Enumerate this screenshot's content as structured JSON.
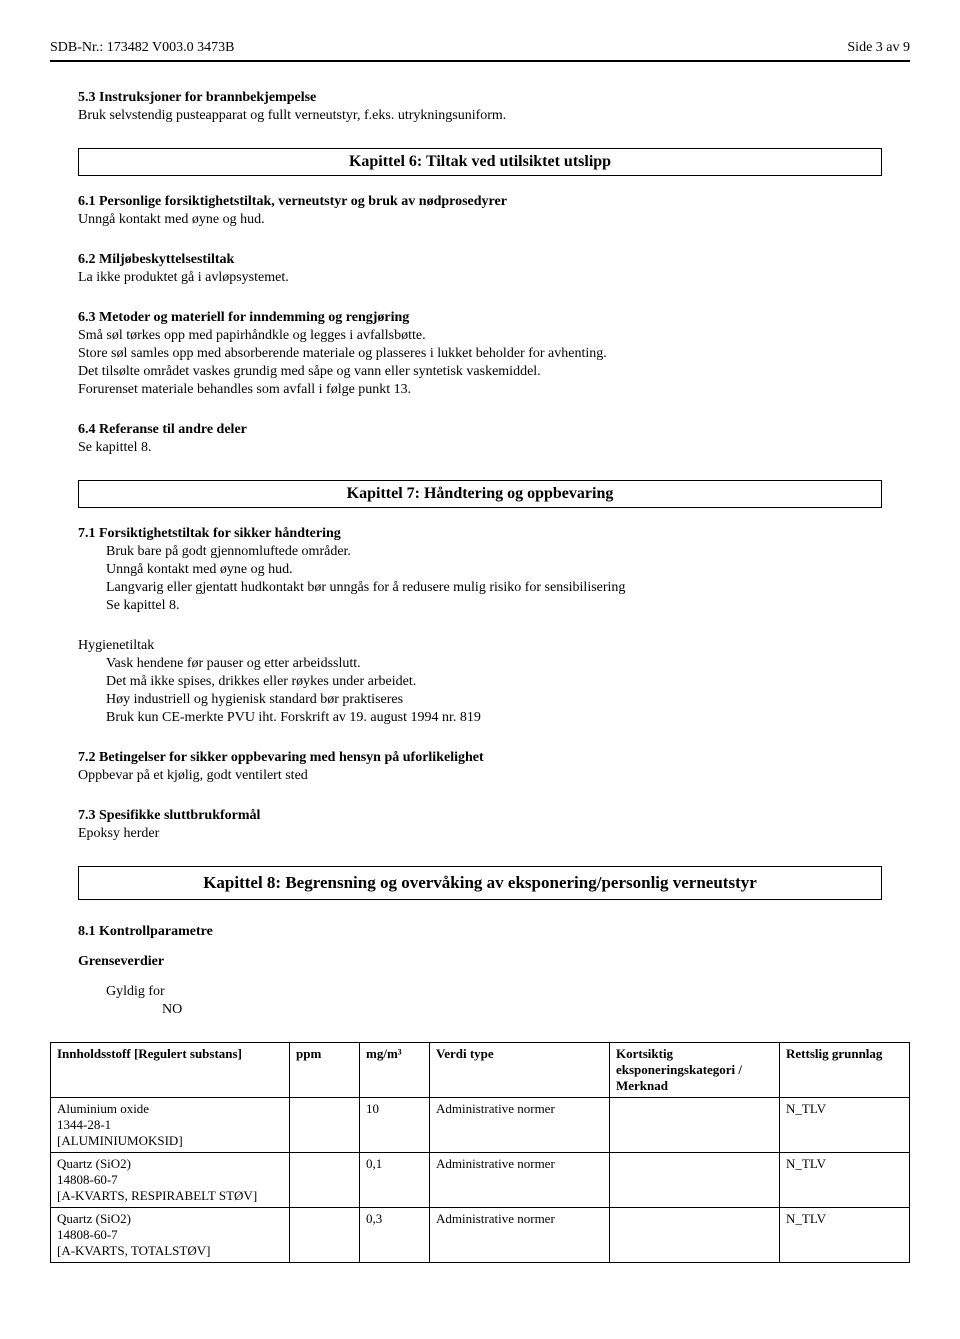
{
  "header": {
    "left": "SDB-Nr.:  173482  V003.0   3473B",
    "right": "Side 3 av 9"
  },
  "s53": {
    "title": "5.3 Instruksjoner for brannbekjempelse",
    "body": "Bruk selvstendig pusteapparat og fullt verneutstyr, f.eks. utrykningsuniform."
  },
  "ch6": {
    "title": "Kapittel 6: Tiltak ved utilsiktet utslipp",
    "s61_title": "6.1 Personlige forsiktighetstiltak, verneutstyr og bruk av nødprosedyrer",
    "s61_body": "Unngå kontakt med øyne og hud.",
    "s62_title": "6.2 Miljøbeskyttelsestiltak",
    "s62_body": "La ikke produktet gå i avløpsystemet.",
    "s63_title": "6.3 Metoder og materiell for inndemming og rengjøring",
    "s63_l1": "Små søl tørkes opp med papirhåndkle og legges i avfallsbøtte.",
    "s63_l2": "Store søl samles opp med absorberende materiale og plasseres i lukket beholder for avhenting.",
    "s63_l3": "Det tilsølte området vaskes grundig med såpe og vann eller syntetisk vaskemiddel.",
    "s63_l4": "Forurenset materiale behandles som avfall i følge punkt 13.",
    "s64_title": "6.4 Referanse til andre deler",
    "s64_body": "Se kapittel 8."
  },
  "ch7": {
    "title": "Kapittel 7: Håndtering og oppbevaring",
    "s71_title": "7.1 Forsiktighetstiltak for sikker håndtering",
    "s71_l1": "Bruk bare på godt gjennomluftede områder.",
    "s71_l2": "Unngå kontakt med øyne og hud.",
    "s71_l3": "Langvarig eller gjentatt hudkontakt bør unngås for å redusere mulig risiko for sensibilisering",
    "s71_l4": "Se kapittel 8.",
    "hyg_title": "Hygienetiltak",
    "hyg_l1": "Vask hendene før pauser og etter arbeidsslutt.",
    "hyg_l2": "Det må ikke spises, drikkes eller røykes under arbeidet.",
    "hyg_l3": "Høy industriell og hygienisk standard bør praktiseres",
    "hyg_l4": "Bruk kun CE-merkte PVU iht. Forskrift av 19. august 1994 nr. 819",
    "s72_title": "7.2 Betingelser for sikker oppbevaring med hensyn på uforlikelighet",
    "s72_body": "Oppbevar på et kjølig, godt ventilert sted",
    "s73_title": "7.3 Spesifikke sluttbrukformål",
    "s73_body": "Epoksy herder"
  },
  "ch8": {
    "title": "Kapittel 8: Begrensning og overvåking av eksponering/personlig verneutstyr",
    "s81_title": "8.1 Kontrollparametre",
    "grense_title": "Grenseverdier",
    "gyldig_label": "Gyldig for",
    "gyldig_value": "NO",
    "table": {
      "columns": [
        "Innholdsstoff [Regulert substans]",
        "ppm",
        "mg/m³",
        "Verdi type",
        "Kortsiktig eksponeringskategori / Merknad",
        "Rettslig grunnlag"
      ],
      "rows": [
        {
          "substance_name": "Aluminium oxide",
          "substance_cas": "1344-28-1",
          "substance_reg": "[ALUMINIUMOKSID]",
          "ppm": "",
          "mg": "10",
          "verdi": "Administrative normer",
          "kort": "",
          "rett": "N_TLV"
        },
        {
          "substance_name": "Quartz (SiO2)",
          "substance_cas": "14808-60-7",
          "substance_reg": "[A-KVARTS, RESPIRABELT STØV]",
          "ppm": "",
          "mg": "0,1",
          "verdi": "Administrative normer",
          "kort": "",
          "rett": "N_TLV"
        },
        {
          "substance_name": "Quartz (SiO2)",
          "substance_cas": "14808-60-7",
          "substance_reg": "[A-KVARTS, TOTALSTØV]",
          "ppm": "",
          "mg": "0,3",
          "verdi": "Administrative normer",
          "kort": "",
          "rett": "N_TLV"
        }
      ]
    }
  }
}
